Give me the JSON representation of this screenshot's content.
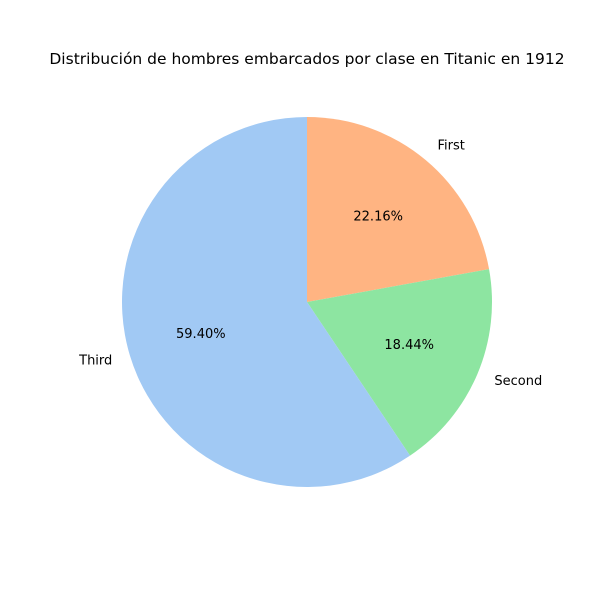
{
  "chart_data": {
    "type": "pie",
    "title": "Distribución de hombres embarcados por clase en Titanic en 1912",
    "slices": [
      {
        "label": "First",
        "value": 22.16,
        "pct_label": "22.16%",
        "color": "#ffb482"
      },
      {
        "label": "Second",
        "value": 18.44,
        "pct_label": "18.44%",
        "color": "#8de5a1"
      },
      {
        "label": "Third",
        "value": 59.4,
        "pct_label": "59.40%",
        "color": "#a1c9f4"
      }
    ],
    "start_angle": "top",
    "direction": "clockwise",
    "legend": "none"
  }
}
